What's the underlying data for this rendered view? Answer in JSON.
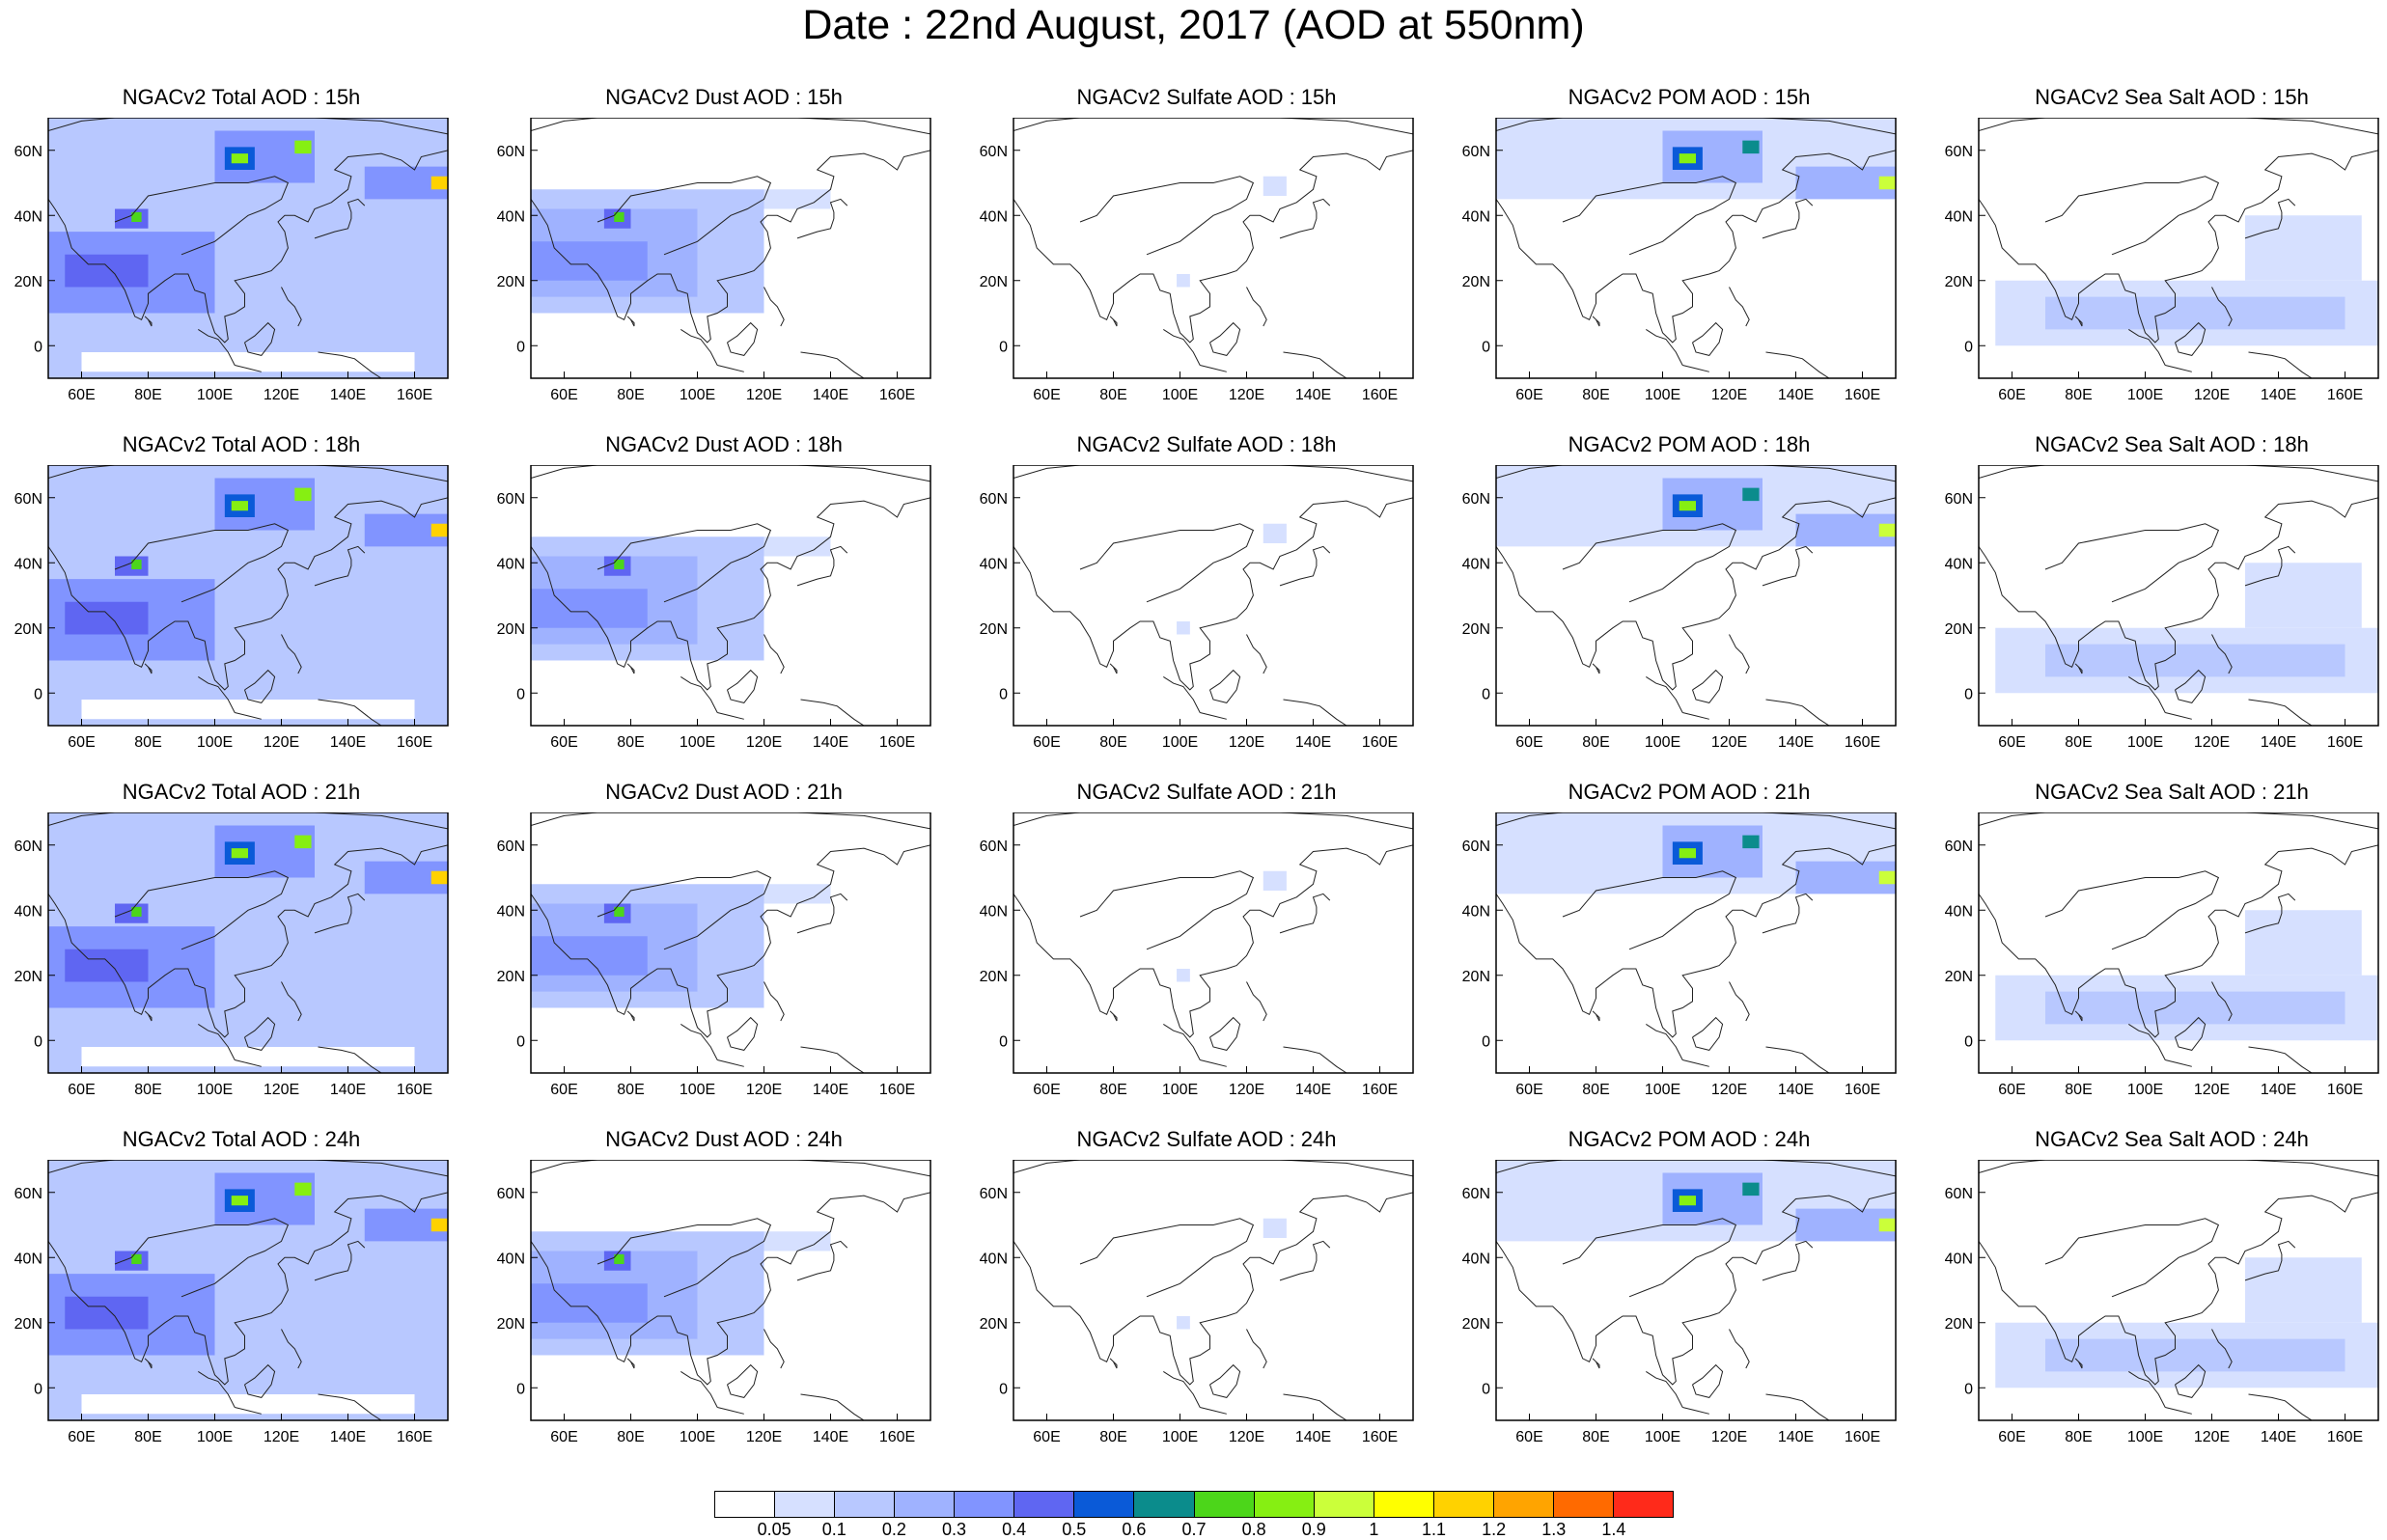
{
  "title": "Date : 22nd August, 2017 (AOD at 550nm)",
  "axes": {
    "x_ticks": [
      "60E",
      "80E",
      "100E",
      "120E",
      "140E",
      "160E"
    ],
    "y_ticks": [
      "60N",
      "40N",
      "20N",
      "0"
    ],
    "lon_range": [
      50,
      170
    ],
    "lat_range": [
      -10,
      70
    ]
  },
  "species": [
    {
      "id": "total",
      "label": "NGACv2 Total AOD"
    },
    {
      "id": "dust",
      "label": "NGACv2 Dust AOD"
    },
    {
      "id": "sulfate",
      "label": "NGACv2 Sulfate AOD"
    },
    {
      "id": "pom",
      "label": "NGACv2 POM AOD"
    },
    {
      "id": "seasalt",
      "label": "NGACv2 Sea Salt AOD"
    }
  ],
  "hours": [
    "15h",
    "18h",
    "21h",
    "24h"
  ],
  "panel_titles": [
    [
      "NGACv2 Total AOD : 15h",
      "NGACv2 Dust AOD : 15h",
      "NGACv2 Sulfate AOD : 15h",
      "NGACv2 POM AOD : 15h",
      "NGACv2 Sea Salt AOD : 15h"
    ],
    [
      "NGACv2 Total AOD : 18h",
      "NGACv2 Dust AOD : 18h",
      "NGACv2 Sulfate AOD : 18h",
      "NGACv2 POM AOD : 18h",
      "NGACv2 Sea Salt AOD : 18h"
    ],
    [
      "NGACv2 Total AOD : 21h",
      "NGACv2 Dust AOD : 21h",
      "NGACv2 Sulfate AOD : 21h",
      "NGACv2 POM AOD : 21h",
      "NGACv2 Sea Salt AOD : 21h"
    ],
    [
      "NGACv2 Total AOD : 24h",
      "NGACv2 Dust AOD : 24h",
      "NGACv2 Sulfate AOD : 24h",
      "NGACv2 POM AOD : 24h",
      "NGACv2 Sea Salt  AOD : 24h"
    ]
  ],
  "colorbar": {
    "labels": [
      "0.05",
      "0.1",
      "0.2",
      "0.3",
      "0.4",
      "0.5",
      "0.6",
      "0.7",
      "0.8",
      "0.9",
      "1",
      "1.1",
      "1.2",
      "1.3",
      "1.4"
    ],
    "colors": [
      "#ffffff",
      "#d6e0ff",
      "#b8c8ff",
      "#9fb2ff",
      "#8194ff",
      "#5f66f2",
      "#0a5ad8",
      "#0b8c8c",
      "#4cd61a",
      "#86ef12",
      "#cbff3a",
      "#ffff00",
      "#ffd200",
      "#ffa400",
      "#ff6a00",
      "#ff2a1a"
    ]
  },
  "features": {
    "total": [
      {
        "lon": [
          50,
          170
        ],
        "lat": [
          -10,
          70
        ],
        "v": 0.12
      },
      {
        "lon": [
          50,
          100
        ],
        "lat": [
          10,
          35
        ],
        "v": 0.3
      },
      {
        "lon": [
          55,
          80
        ],
        "lat": [
          18,
          28
        ],
        "v": 0.42
      },
      {
        "lon": [
          70,
          80
        ],
        "lat": [
          36,
          42
        ],
        "v": 0.4
      },
      {
        "lon": [
          75,
          78
        ],
        "lat": [
          38,
          41
        ],
        "v": 0.7
      },
      {
        "lon": [
          100,
          130
        ],
        "lat": [
          50,
          66
        ],
        "v": 0.3
      },
      {
        "lon": [
          103,
          112
        ],
        "lat": [
          54,
          61
        ],
        "v": 0.55
      },
      {
        "lon": [
          105,
          110
        ],
        "lat": [
          56,
          59
        ],
        "v": 0.85
      },
      {
        "lon": [
          124,
          129
        ],
        "lat": [
          59,
          63
        ],
        "v": 0.8
      },
      {
        "lon": [
          145,
          170
        ],
        "lat": [
          45,
          55
        ],
        "v": 0.3
      },
      {
        "lon": [
          165,
          170
        ],
        "lat": [
          48,
          52
        ],
        "v": 1.1
      },
      {
        "lon": [
          60,
          160
        ],
        "lat": [
          -8,
          -2
        ],
        "v": 0.04
      }
    ],
    "dust": [
      {
        "lon": [
          50,
          120
        ],
        "lat": [
          10,
          48
        ],
        "v": 0.12
      },
      {
        "lon": [
          50,
          100
        ],
        "lat": [
          15,
          42
        ],
        "v": 0.22
      },
      {
        "lon": [
          50,
          85
        ],
        "lat": [
          20,
          32
        ],
        "v": 0.32
      },
      {
        "lon": [
          72,
          80
        ],
        "lat": [
          36,
          42
        ],
        "v": 0.45
      },
      {
        "lon": [
          75,
          78
        ],
        "lat": [
          38,
          41
        ],
        "v": 0.7
      },
      {
        "lon": [
          120,
          140
        ],
        "lat": [
          42,
          48
        ],
        "v": 0.08
      }
    ],
    "sulfate": [
      {
        "lon": [
          125,
          132
        ],
        "lat": [
          46,
          52
        ],
        "v": 0.09
      },
      {
        "lon": [
          99,
          103
        ],
        "lat": [
          18,
          22
        ],
        "v": 0.09
      }
    ],
    "pom": [
      {
        "lon": [
          50,
          170
        ],
        "lat": [
          45,
          70
        ],
        "v": 0.07
      },
      {
        "lon": [
          100,
          130
        ],
        "lat": [
          50,
          66
        ],
        "v": 0.25
      },
      {
        "lon": [
          103,
          112
        ],
        "lat": [
          54,
          61
        ],
        "v": 0.5
      },
      {
        "lon": [
          105,
          110
        ],
        "lat": [
          56,
          59
        ],
        "v": 0.8
      },
      {
        "lon": [
          124,
          129
        ],
        "lat": [
          59,
          63
        ],
        "v": 0.6
      },
      {
        "lon": [
          140,
          170
        ],
        "lat": [
          45,
          55
        ],
        "v": 0.25
      },
      {
        "lon": [
          165,
          170
        ],
        "lat": [
          48,
          52
        ],
        "v": 0.9
      }
    ],
    "seasalt": [
      {
        "lon": [
          55,
          170
        ],
        "lat": [
          0,
          20
        ],
        "v": 0.09
      },
      {
        "lon": [
          70,
          160
        ],
        "lat": [
          5,
          15
        ],
        "v": 0.15
      },
      {
        "lon": [
          130,
          165
        ],
        "lat": [
          20,
          40
        ],
        "v": 0.08
      }
    ]
  }
}
